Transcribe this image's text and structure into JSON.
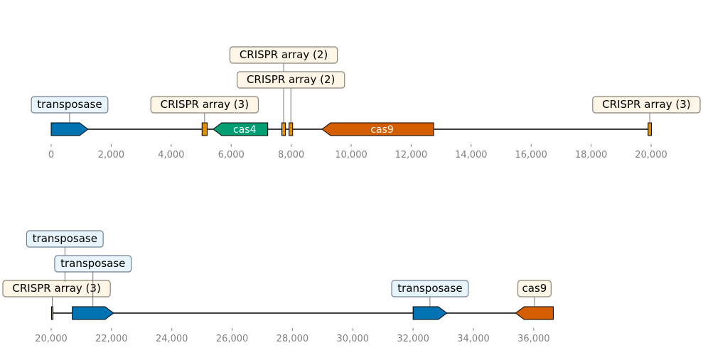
{
  "colors": {
    "transposase": "#0173b2",
    "cas4": "#029e73",
    "cas9": "#d55e00",
    "crispr": "#de8f05",
    "transposase_box_fill": "#e8f4fc",
    "transposase_box_stroke": "#708090",
    "crispr_box_fill": "#fdf5e6",
    "crispr_box_stroke": "#8b8378",
    "axis": "#000000",
    "tick_text": "#808080"
  },
  "tracks": [
    {
      "range": [
        0,
        20000
      ],
      "ticks": [
        {
          "value": 0,
          "label": "0"
        },
        {
          "value": 2000,
          "label": "2,000"
        },
        {
          "value": 4000,
          "label": "4,000"
        },
        {
          "value": 6000,
          "label": "6,000"
        },
        {
          "value": 8000,
          "label": "8,000"
        },
        {
          "value": 10000,
          "label": "10,000"
        },
        {
          "value": 12000,
          "label": "12,000"
        },
        {
          "value": 14000,
          "label": "14,000"
        },
        {
          "value": 16000,
          "label": "16,000"
        },
        {
          "value": 18000,
          "label": "18,000"
        },
        {
          "value": 20000,
          "label": "20,000"
        }
      ],
      "features": [
        {
          "type": "transposase",
          "start": 0,
          "end": 1230,
          "strand": 1,
          "inner_label": "",
          "box_label": "transposase",
          "box_level": 1
        },
        {
          "type": "crispr",
          "start": 5030,
          "end": 5200,
          "strand": 0,
          "inner_label": "",
          "box_label": "CRISPR array (3)",
          "box_level": 1
        },
        {
          "type": "cas4",
          "start": 5400,
          "end": 7220,
          "strand": -1,
          "inner_label": "cas4",
          "box_label": "",
          "box_level": 0
        },
        {
          "type": "crispr",
          "start": 7690,
          "end": 7810,
          "strand": 0,
          "inner_label": "",
          "box_label": "CRISPR array (2)",
          "box_level": 3
        },
        {
          "type": "crispr",
          "start": 7930,
          "end": 8050,
          "strand": 0,
          "inner_label": "",
          "box_label": "CRISPR array (2)",
          "box_level": 2
        },
        {
          "type": "cas9",
          "start": 9030,
          "end": 12750,
          "strand": -1,
          "inner_label": "cas9",
          "box_label": "",
          "box_level": 0
        },
        {
          "type": "crispr",
          "start": 19900,
          "end": 20010,
          "strand": 0,
          "inner_label": "",
          "box_label": "CRISPR array (3)",
          "box_level": 1
        }
      ]
    },
    {
      "range": [
        20000,
        36650
      ],
      "ticks": [
        {
          "value": 20000,
          "label": "20,000"
        },
        {
          "value": 22000,
          "label": "22,000"
        },
        {
          "value": 24000,
          "label": "24,000"
        },
        {
          "value": 26000,
          "label": "26,000"
        },
        {
          "value": 28000,
          "label": "28,000"
        },
        {
          "value": 30000,
          "label": "30,000"
        },
        {
          "value": 32000,
          "label": "32,000"
        },
        {
          "value": 34000,
          "label": "34,000"
        },
        {
          "value": 36000,
          "label": "36,000"
        }
      ],
      "features": [
        {
          "type": "crispr",
          "start": 20010,
          "end": 20060,
          "strand": 0,
          "inner_label": "",
          "box_label": "CRISPR array (3)",
          "box_level": 1
        },
        {
          "type": "transposase",
          "start": 20180,
          "end": 20730,
          "strand": -1,
          "inner_label": "",
          "box_label": "transposase",
          "box_level": 3
        },
        {
          "type": "transposase",
          "start": 20700,
          "end": 22070,
          "strand": 1,
          "inner_label": "",
          "box_label": "transposase",
          "box_level": 2
        },
        {
          "type": "transposase",
          "start": 32000,
          "end": 33120,
          "strand": 1,
          "inner_label": "",
          "box_label": "transposase",
          "box_level": 1
        },
        {
          "type": "cas9",
          "start": 35400,
          "end": 36650,
          "strand": -1,
          "inner_label": "",
          "box_label": "cas9",
          "box_level": 1
        }
      ]
    }
  ]
}
